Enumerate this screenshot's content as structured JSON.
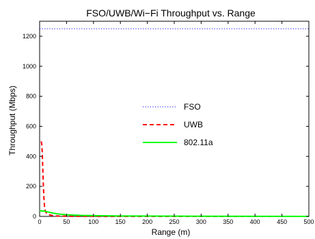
{
  "chart_data": {
    "type": "line",
    "title": "FSO/UWB/Wi−Fi Throughput vs. Range",
    "xlabel": "Range (m)",
    "ylabel": "Throughput (Mbps)",
    "xlim": [
      0,
      500
    ],
    "ylim": [
      0,
      1300
    ],
    "xticks": [
      0,
      50,
      100,
      150,
      200,
      250,
      300,
      350,
      400,
      450,
      500
    ],
    "yticks": [
      0,
      200,
      400,
      600,
      800,
      1000,
      1200
    ],
    "xtick_labels": [
      "0",
      "50",
      "100",
      "150",
      "200",
      "250",
      "300",
      "350",
      "400",
      "450",
      "500"
    ],
    "ytick_labels": [
      "0",
      "200",
      "400",
      "600",
      "800",
      "1000",
      "1200"
    ],
    "grid": false,
    "legend_placement": "center",
    "series": [
      {
        "name": "FSO",
        "color": "#0000ff",
        "style": "dotted",
        "x": [
          0,
          500
        ],
        "y": [
          1250,
          1250
        ]
      },
      {
        "name": "UWB",
        "color": "#ff0000",
        "style": "dashed",
        "x": [
          3,
          4,
          5,
          6,
          7,
          8,
          9,
          10,
          12,
          15,
          20,
          25,
          30,
          40,
          50,
          75,
          100,
          150,
          200,
          300,
          400,
          500
        ],
        "y": [
          500,
          480,
          420,
          300,
          200,
          120,
          70,
          45,
          25,
          15,
          8,
          5,
          3,
          2,
          1,
          0.5,
          0.3,
          0.1,
          0.05,
          0,
          0,
          0
        ]
      },
      {
        "name": "802.11a",
        "color": "#00ff00",
        "style": "solid",
        "x": [
          0,
          5,
          10,
          15,
          20,
          25,
          30,
          40,
          50,
          75,
          100,
          150,
          200,
          300,
          400,
          500
        ],
        "y": [
          38,
          36,
          34,
          30,
          26,
          22,
          19,
          14,
          11,
          7,
          5,
          3,
          2,
          1,
          0.5,
          0.2
        ]
      }
    ]
  }
}
